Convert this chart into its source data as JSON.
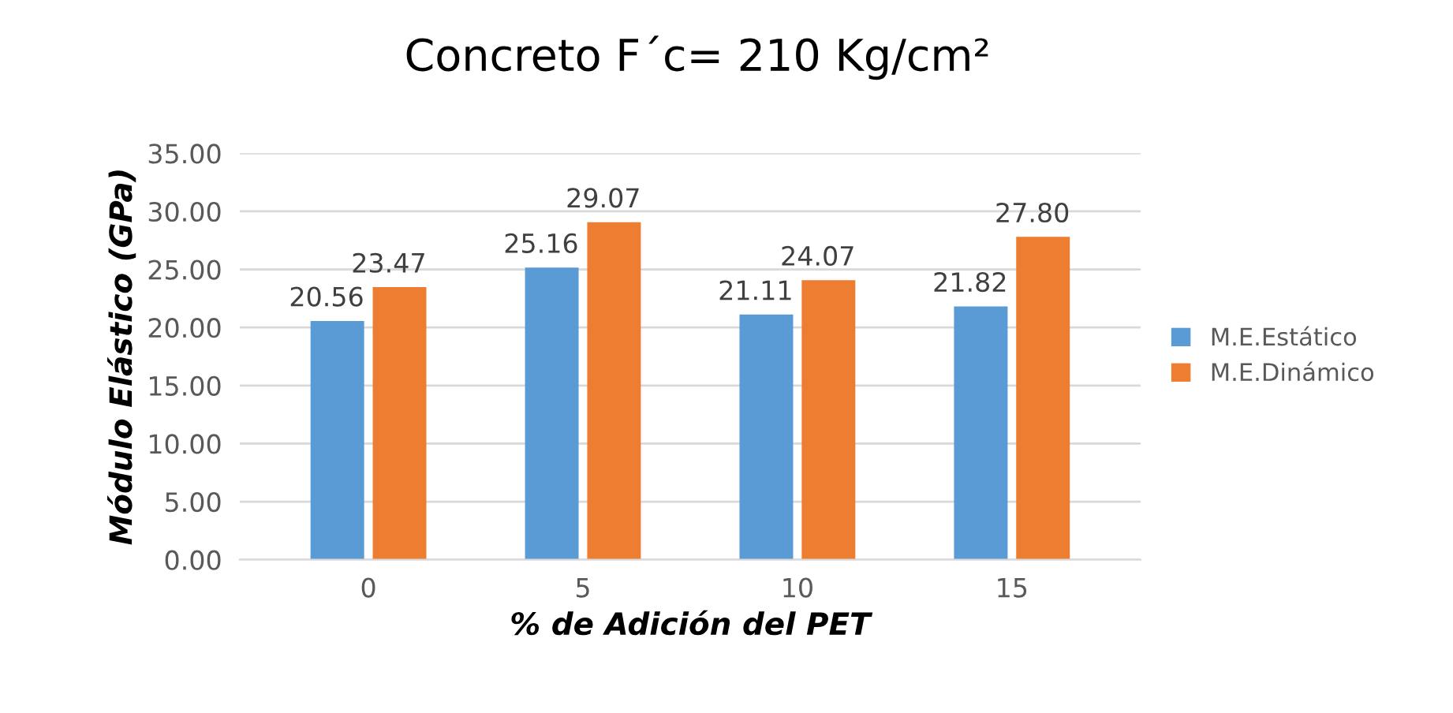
{
  "chart_data": {
    "type": "bar",
    "title": "Concreto F´c= 210 Kg/cm²",
    "xlabel": "% de Adición del PET",
    "ylabel": "Módulo Elástico (GPa)",
    "categories": [
      "0",
      "5",
      "10",
      "15"
    ],
    "series": [
      {
        "name": "M.E.Estático",
        "color": "#5b9bd5",
        "values": [
          20.56,
          25.16,
          21.11,
          21.82
        ],
        "value_labels": [
          "20.56",
          "25.16",
          "21.11",
          "21.82"
        ]
      },
      {
        "name": "M.E.Dinámico",
        "color": "#ed7d31",
        "values": [
          23.47,
          29.07,
          24.07,
          27.8
        ],
        "value_labels": [
          "23.47",
          "29.07",
          "24.07",
          "27.80"
        ]
      }
    ],
    "ylim": [
      0,
      35
    ],
    "yticks": [
      {
        "value": 0,
        "label": "0.00"
      },
      {
        "value": 5,
        "label": "5.00"
      },
      {
        "value": 10,
        "label": "10.00"
      },
      {
        "value": 15,
        "label": "15.00"
      },
      {
        "value": 20,
        "label": "20.00"
      },
      {
        "value": 25,
        "label": "25.00"
      },
      {
        "value": 30,
        "label": "30.00"
      },
      {
        "value": 35,
        "label": "35.00"
      }
    ],
    "grid": "y",
    "legend": "right"
  }
}
